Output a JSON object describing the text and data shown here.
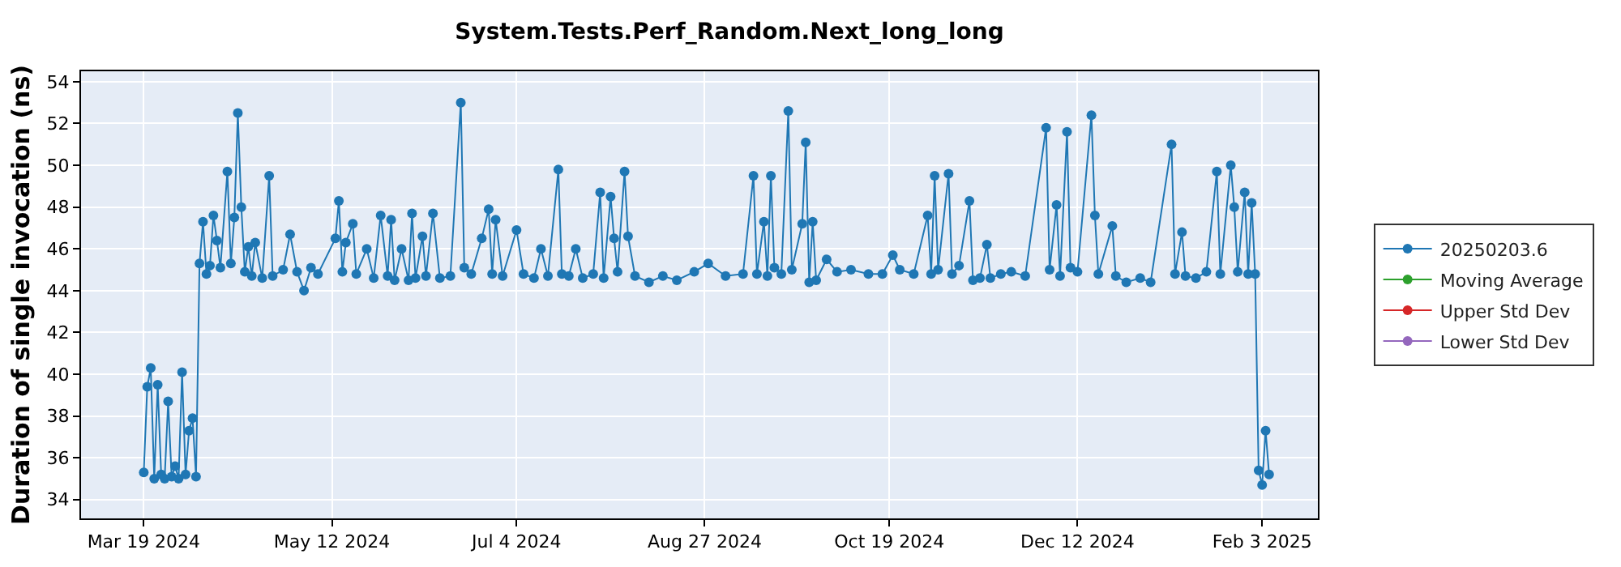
{
  "chart_data": {
    "type": "line",
    "title": "System.Tests.Perf_Random.Next_long_long",
    "ylabel": "Duration of single invocation (ns)",
    "xlim": [
      "2024-03-01",
      "2025-02-19"
    ],
    "xticks": [
      {
        "value": "2024-03-19",
        "label": "Mar 19 2024"
      },
      {
        "value": "2024-05-12",
        "label": "May 12 2024"
      },
      {
        "value": "2024-07-04",
        "label": "Jul 4 2024"
      },
      {
        "value": "2024-08-27",
        "label": "Aug 27 2024"
      },
      {
        "value": "2024-10-19",
        "label": "Oct 19 2024"
      },
      {
        "value": "2024-12-12",
        "label": "Dec 12 2024"
      },
      {
        "value": "2025-02-03",
        "label": "Feb 3 2025"
      }
    ],
    "ylim": [
      33.1,
      54.5
    ],
    "yticks": [
      34,
      36,
      38,
      40,
      42,
      44,
      46,
      48,
      50,
      52,
      54
    ],
    "grid": true,
    "legend": "right",
    "marker": "circle",
    "line_style": "solid",
    "series": [
      {
        "name": "20250203.6",
        "color": "#1f77b4",
        "x": [
          "2024-03-19",
          "2024-03-20",
          "2024-03-21",
          "2024-03-22",
          "2024-03-23",
          "2024-03-24",
          "2024-03-25",
          "2024-03-26",
          "2024-03-27",
          "2024-03-28",
          "2024-03-29",
          "2024-03-30",
          "2024-03-31",
          "2024-04-01",
          "2024-04-02",
          "2024-04-03",
          "2024-04-04",
          "2024-04-05",
          "2024-04-06",
          "2024-04-07",
          "2024-04-08",
          "2024-04-09",
          "2024-04-10",
          "2024-04-12",
          "2024-04-13",
          "2024-04-14",
          "2024-04-15",
          "2024-04-16",
          "2024-04-17",
          "2024-04-18",
          "2024-04-19",
          "2024-04-20",
          "2024-04-22",
          "2024-04-24",
          "2024-04-25",
          "2024-04-28",
          "2024-04-30",
          "2024-05-02",
          "2024-05-04",
          "2024-05-06",
          "2024-05-08",
          "2024-05-13",
          "2024-05-14",
          "2024-05-15",
          "2024-05-16",
          "2024-05-18",
          "2024-05-19",
          "2024-05-22",
          "2024-05-24",
          "2024-05-26",
          "2024-05-28",
          "2024-05-29",
          "2024-05-30",
          "2024-06-01",
          "2024-06-03",
          "2024-06-04",
          "2024-06-05",
          "2024-06-07",
          "2024-06-08",
          "2024-06-10",
          "2024-06-12",
          "2024-06-15",
          "2024-06-18",
          "2024-06-19",
          "2024-06-21",
          "2024-06-24",
          "2024-06-26",
          "2024-06-27",
          "2024-06-28",
          "2024-06-30",
          "2024-07-04",
          "2024-07-06",
          "2024-07-09",
          "2024-07-11",
          "2024-07-13",
          "2024-07-16",
          "2024-07-17",
          "2024-07-19",
          "2024-07-21",
          "2024-07-23",
          "2024-07-26",
          "2024-07-28",
          "2024-07-29",
          "2024-07-31",
          "2024-08-01",
          "2024-08-02",
          "2024-08-04",
          "2024-08-05",
          "2024-08-07",
          "2024-08-11",
          "2024-08-15",
          "2024-08-19",
          "2024-08-24",
          "2024-08-28",
          "2024-09-02",
          "2024-09-07",
          "2024-09-10",
          "2024-09-11",
          "2024-09-13",
          "2024-09-14",
          "2024-09-15",
          "2024-09-16",
          "2024-09-18",
          "2024-09-20",
          "2024-09-21",
          "2024-09-24",
          "2024-09-25",
          "2024-09-26",
          "2024-09-27",
          "2024-09-28",
          "2024-10-01",
          "2024-10-04",
          "2024-10-08",
          "2024-10-13",
          "2024-10-17",
          "2024-10-20",
          "2024-10-22",
          "2024-10-26",
          "2024-10-30",
          "2024-10-31",
          "2024-11-01",
          "2024-11-02",
          "2024-11-05",
          "2024-11-06",
          "2024-11-08",
          "2024-11-11",
          "2024-11-12",
          "2024-11-14",
          "2024-11-16",
          "2024-11-17",
          "2024-11-20",
          "2024-11-23",
          "2024-11-27",
          "2024-12-03",
          "2024-12-04",
          "2024-12-06",
          "2024-12-07",
          "2024-12-09",
          "2024-12-10",
          "2024-12-12",
          "2024-12-16",
          "2024-12-17",
          "2024-12-18",
          "2024-12-22",
          "2024-12-23",
          "2024-12-26",
          "2024-12-30",
          "2025-01-02",
          "2025-01-08",
          "2025-01-09",
          "2025-01-11",
          "2025-01-12",
          "2025-01-15",
          "2025-01-18",
          "2025-01-21",
          "2025-01-22",
          "2025-01-25",
          "2025-01-26",
          "2025-01-27",
          "2025-01-29",
          "2025-01-30",
          "2025-01-31",
          "2025-02-01",
          "2025-02-02",
          "2025-02-03",
          "2025-02-04",
          "2025-02-05"
        ],
        "values": [
          35.3,
          39.4,
          40.3,
          35.0,
          39.5,
          35.2,
          35.0,
          38.7,
          35.1,
          35.6,
          35.0,
          40.1,
          35.2,
          37.3,
          37.9,
          35.1,
          45.3,
          47.3,
          44.8,
          45.2,
          47.6,
          46.4,
          45.1,
          49.7,
          45.3,
          47.5,
          52.5,
          48.0,
          44.9,
          46.1,
          44.7,
          46.3,
          44.6,
          49.5,
          44.7,
          45.0,
          46.7,
          44.9,
          44.0,
          45.1,
          44.8,
          46.5,
          48.3,
          44.9,
          46.3,
          47.2,
          44.8,
          46.0,
          44.6,
          47.6,
          44.7,
          47.4,
          44.5,
          46.0,
          44.5,
          47.7,
          44.6,
          46.6,
          44.7,
          47.7,
          44.6,
          44.7,
          53.0,
          45.1,
          44.8,
          46.5,
          47.9,
          44.8,
          47.4,
          44.7,
          46.9,
          44.8,
          44.6,
          46.0,
          44.7,
          49.8,
          44.8,
          44.7,
          46.0,
          44.6,
          44.8,
          48.7,
          44.6,
          48.5,
          46.5,
          44.9,
          49.7,
          46.6,
          44.7,
          44.4,
          44.7,
          44.5,
          44.9,
          45.3,
          44.7,
          44.8,
          49.5,
          44.8,
          47.3,
          44.7,
          49.5,
          45.1,
          44.8,
          52.6,
          45.0,
          47.2,
          51.1,
          44.4,
          47.3,
          44.5,
          45.5,
          44.9,
          45.0,
          44.8,
          44.8,
          45.7,
          45.0,
          44.8,
          47.6,
          44.8,
          49.5,
          45.0,
          49.6,
          44.8,
          45.2,
          48.3,
          44.5,
          44.6,
          46.2,
          44.6,
          44.8,
          44.9,
          44.7,
          51.8,
          45.0,
          48.1,
          44.7,
          51.6,
          45.1,
          44.9,
          52.4,
          47.6,
          44.8,
          47.1,
          44.7,
          44.4,
          44.6,
          44.4,
          51.0,
          44.8,
          46.8,
          44.7,
          44.6,
          44.9,
          49.7,
          44.8,
          50.0,
          48.0,
          44.9,
          48.7,
          44.8,
          48.2,
          44.8,
          35.4,
          34.7,
          37.3,
          35.2
        ]
      },
      {
        "name": "Moving Average",
        "color": "#2ca02c"
      },
      {
        "name": "Upper Std Dev",
        "color": "#d62728"
      },
      {
        "name": "Lower Std Dev",
        "color": "#9467bd"
      }
    ]
  }
}
